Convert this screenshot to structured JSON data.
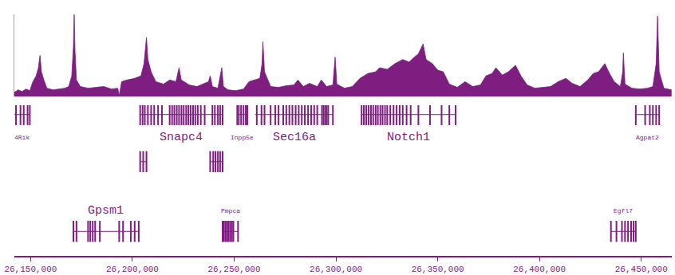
{
  "chart_data": {
    "type": "area",
    "color": "#7e1e80",
    "x": [
      26142000,
      26143900,
      26145800,
      26147700,
      26149600,
      26151100,
      26152700,
      26153800,
      26154600,
      26155300,
      26156500,
      26158000,
      26161100,
      26164100,
      26166800,
      26168700,
      26170200,
      26171000,
      26171400,
      26171800,
      26172500,
      26174400,
      26178200,
      26182100,
      26185900,
      26189700,
      26192800,
      26193500,
      26194700,
      26197300,
      26201100,
      26204200,
      26205700,
      26206900,
      26207600,
      26209200,
      26211500,
      26215300,
      26218300,
      26221400,
      26222900,
      26224000,
      26227900,
      26231700,
      26234400,
      26237400,
      26238200,
      26239300,
      26242000,
      26243900,
      26244700,
      26247000,
      26250800,
      26254600,
      26257300,
      26260300,
      26262600,
      26263700,
      26264100,
      26264900,
      26267900,
      26271800,
      26275600,
      26279400,
      26281300,
      26284000,
      26287000,
      26290800,
      26292800,
      26295400,
      26298500,
      26299600,
      26300400,
      26304200,
      26308000,
      26311800,
      26315700,
      26319500,
      26321400,
      26325200,
      26329000,
      26332800,
      26335900,
      26338600,
      26340500,
      26342800,
      26344300,
      26347300,
      26350000,
      26352700,
      26355700,
      26359600,
      26363400,
      26367200,
      26371000,
      26373700,
      26376700,
      26378600,
      26381700,
      26384700,
      26388200,
      26390900,
      26393900,
      26397700,
      26401500,
      26405400,
      26409200,
      26413000,
      26416000,
      26419900,
      26423700,
      26426400,
      26429000,
      26432100,
      26434400,
      26436700,
      26439700,
      26440900,
      26441200,
      26442000,
      26445400,
      26449300,
      26453100,
      26455700,
      26457300,
      26458000,
      26458800,
      26461100,
      26464900
    ],
    "values": [
      5,
      8,
      6,
      9,
      7,
      18,
      25,
      35,
      50,
      30,
      20,
      10,
      8,
      9,
      10,
      12,
      25,
      60,
      100,
      55,
      20,
      12,
      10,
      11,
      12,
      9,
      10,
      1,
      18,
      20,
      22,
      25,
      40,
      72,
      45,
      30,
      18,
      15,
      20,
      18,
      35,
      20,
      14,
      12,
      15,
      18,
      25,
      12,
      10,
      35,
      12,
      8,
      7,
      9,
      18,
      20,
      22,
      40,
      67,
      30,
      12,
      11,
      13,
      14,
      20,
      12,
      16,
      12,
      20,
      12,
      14,
      48,
      15,
      10,
      12,
      22,
      28,
      30,
      35,
      33,
      40,
      45,
      42,
      48,
      52,
      64,
      45,
      40,
      32,
      30,
      15,
      11,
      18,
      12,
      14,
      25,
      28,
      35,
      26,
      30,
      38,
      25,
      14,
      10,
      11,
      12,
      18,
      22,
      16,
      12,
      20,
      28,
      30,
      40,
      28,
      18,
      12,
      30,
      53,
      15,
      10,
      9,
      10,
      12,
      40,
      98,
      30,
      10,
      8
    ],
    "xlim": [
      26142000,
      26465000
    ],
    "ylim": [
      0,
      100
    ],
    "xticks": [
      {
        "value": 26150000,
        "label": "26,150,000"
      },
      {
        "value": 26200000,
        "label": "26,200,000"
      },
      {
        "value": 26250000,
        "label": "26,250,000"
      },
      {
        "value": 26300000,
        "label": "26,300,000"
      },
      {
        "value": 26350000,
        "label": "26,350,000"
      },
      {
        "value": 26400000,
        "label": "26,400,000"
      },
      {
        "value": 26450000,
        "label": "26,450,000"
      }
    ],
    "tick_labels": "x",
    "grid": false,
    "genes": [
      {
        "name": "4Rik",
        "start": 26142000,
        "end": 26149600,
        "track": 0,
        "exons": [
          26142800,
          26145000,
          26146600,
          26148500,
          26149600
        ]
      },
      {
        "name": "Snapc4",
        "start": 26203800,
        "end": 26244300,
        "track": 0,
        "exons": [
          26203800,
          26205000,
          26206100,
          26207600,
          26209200,
          26210700,
          26212600,
          26214500,
          26218300,
          26219500,
          26220600,
          26221800,
          26222900,
          26224100,
          26225200,
          26226400,
          26227500,
          26228600,
          26229800,
          26230900,
          26232100,
          26233600,
          26235500,
          26239300,
          26240500,
          26242000,
          26243100,
          26244300
        ]
      },
      {
        "name": "Inpp5e",
        "start": 26251500,
        "end": 26256500,
        "track": 0,
        "exons": [
          26251500,
          26252300,
          26253400,
          26254600,
          26255700,
          26256500
        ]
      },
      {
        "name": "Sec16a",
        "start": 26260300,
        "end": 26298500,
        "track": 0,
        "exons": [
          26261100,
          26263400,
          26264900,
          26267900,
          26270200,
          26271800,
          26274100,
          26275600,
          26277100,
          26278600,
          26280200,
          26281700,
          26283200,
          26284700,
          26286300,
          26287800,
          26289300,
          26290800,
          26293100,
          26293900,
          26294700,
          26295400,
          26296200,
          26298500
        ]
      },
      {
        "name": "Notch1",
        "start": 26312600,
        "end": 26358800,
        "track": 0,
        "exons": [
          26312600,
          26313700,
          26314900,
          26316000,
          26317200,
          26318300,
          26319500,
          26320600,
          26321800,
          26322900,
          26324100,
          26325200,
          26326700,
          26328300,
          26329800,
          26331300,
          26332800,
          26334700,
          26336700,
          26340500,
          26346200,
          26351900,
          26355700,
          26358800
        ]
      },
      {
        "name": "Agpat2",
        "start": 26447300,
        "end": 26458800,
        "track": 0,
        "exons": [
          26447300,
          26451900,
          26454200,
          26455700,
          26457300,
          26458800
        ]
      },
      {
        "start": 26203800,
        "end": 26206900,
        "track": 1,
        "exons": [
          26203800,
          26205300,
          26206900
        ]
      },
      {
        "start": 26238200,
        "end": 26244300,
        "track": 1,
        "exons": [
          26238200,
          26239700,
          26240800,
          26242000,
          26243100,
          26244300
        ]
      },
      {
        "name": "Gpsm1",
        "start": 26171000,
        "end": 26203100,
        "track": 2,
        "exons": [
          26171000,
          26172500,
          26178200,
          26179300,
          26180500,
          26181700,
          26184000,
          26193500,
          26195400,
          26199200,
          26201100,
          26203100
        ]
      },
      {
        "name": "Pmpca",
        "start": 26244300,
        "end": 26251900,
        "track": 2,
        "exons": [
          26244300,
          26245000,
          26245800,
          26246600,
          26247300,
          26248100,
          26248900,
          26249600,
          26251900
        ]
      },
      {
        "name": "Egfl7",
        "start": 26435100,
        "end": 26447300,
        "track": 2,
        "exons": [
          26435100,
          26437800,
          26440500,
          26442000,
          26443500,
          26445000,
          26446200,
          26447300
        ]
      }
    ]
  }
}
